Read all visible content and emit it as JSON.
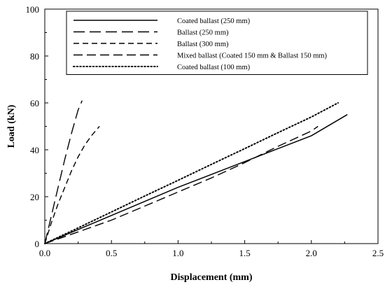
{
  "chart_data": {
    "type": "line",
    "xlabel": "Displacement (mm)",
    "ylabel": "Load (kN)",
    "xlim": [
      0,
      2.5
    ],
    "ylim": [
      0,
      100
    ],
    "xticks": [
      "0.0",
      "0.5",
      "1.0",
      "1.5",
      "2.0",
      "2.5"
    ],
    "yticks": [
      "0",
      "20",
      "40",
      "60",
      "80",
      "100"
    ],
    "grid": false,
    "legend_position": "top-right",
    "series": [
      {
        "name": "Coated ballast (250 mm)",
        "style": "solid",
        "x": [
          0,
          0.25,
          0.5,
          0.75,
          1.0,
          1.25,
          1.5,
          1.75,
          2.0,
          2.27
        ],
        "y": [
          0,
          6,
          12,
          18,
          24,
          29.5,
          35,
          40.5,
          46,
          55
        ]
      },
      {
        "name": "Ballast (250 mm)",
        "style": "longdash",
        "x": [
          0,
          0.05,
          0.1,
          0.15,
          0.2,
          0.25,
          0.28
        ],
        "y": [
          0,
          12,
          24,
          36,
          47,
          57,
          61
        ]
      },
      {
        "name": "Ballast (300 mm)",
        "style": "dash",
        "x": [
          0,
          0.05,
          0.1,
          0.15,
          0.2,
          0.25,
          0.3,
          0.35,
          0.41
        ],
        "y": [
          0,
          9,
          17,
          24,
          31,
          37,
          42,
          46,
          50
        ]
      },
      {
        "name": "Mixed ballast (Coated 150 mm & Ballast 150 mm)",
        "style": "dashdot",
        "x": [
          0,
          0.25,
          0.5,
          0.75,
          1.0,
          1.25,
          1.5,
          1.75,
          2.0,
          2.05
        ],
        "y": [
          0,
          5,
          10,
          16,
          22,
          28,
          34.5,
          41.5,
          48,
          50
        ]
      },
      {
        "name": "Coated ballast (100 mm)",
        "style": "dotted",
        "x": [
          0,
          0.25,
          0.5,
          0.75,
          1.0,
          1.25,
          1.5,
          1.75,
          2.0,
          2.2
        ],
        "y": [
          0,
          6.7,
          13.5,
          20.3,
          27,
          33.8,
          40.5,
          47.3,
          54,
          60
        ]
      }
    ]
  }
}
